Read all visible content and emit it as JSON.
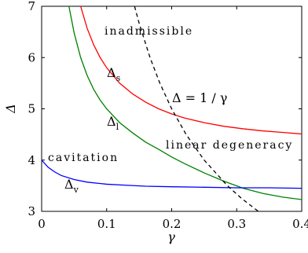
{
  "chart_data": {
    "type": "line",
    "xlabel": "γ",
    "ylabel": "Δ",
    "xlim": [
      0,
      0.4
    ],
    "ylim": [
      3,
      7
    ],
    "x_ticks": [
      "0",
      "0.1",
      "0.2",
      "0.3",
      "0.4"
    ],
    "y_ticks": [
      "3",
      "4",
      "5",
      "6",
      "7"
    ],
    "grid": false,
    "series": [
      {
        "name": "Δs",
        "color": "#ff0000",
        "style": "solid",
        "x": [
          0.06,
          0.07,
          0.08,
          0.09,
          0.1,
          0.12,
          0.14,
          0.16,
          0.18,
          0.2,
          0.22,
          0.25,
          0.28,
          0.31,
          0.34,
          0.37,
          0.4
        ],
        "y": [
          7.0,
          6.57,
          6.25,
          6.0,
          5.8,
          5.5,
          5.29,
          5.13,
          5.0,
          4.9,
          4.82,
          4.73,
          4.66,
          4.61,
          4.57,
          4.54,
          4.51
        ]
      },
      {
        "name": "Δl",
        "color": "#008000",
        "style": "solid",
        "x": [
          0.042,
          0.05,
          0.06,
          0.07,
          0.08,
          0.09,
          0.1,
          0.12,
          0.14,
          0.16,
          0.18,
          0.2,
          0.22,
          0.25,
          0.28,
          0.31,
          0.34,
          0.37,
          0.4
        ],
        "y": [
          7.0,
          6.48,
          6.0,
          5.65,
          5.38,
          5.17,
          5.0,
          4.73,
          4.53,
          4.35,
          4.21,
          4.06,
          3.93,
          3.75,
          3.59,
          3.45,
          3.35,
          3.28,
          3.23
        ]
      },
      {
        "name": "Δv",
        "color": "#0000ff",
        "style": "solid",
        "x": [
          0.0,
          0.01,
          0.02,
          0.03,
          0.05,
          0.07,
          0.1,
          0.13,
          0.16,
          0.2,
          0.25,
          0.3,
          0.35,
          0.4
        ],
        "y": [
          4.0,
          3.86,
          3.77,
          3.7,
          3.62,
          3.57,
          3.53,
          3.51,
          3.49,
          3.48,
          3.47,
          3.46,
          3.46,
          3.45
        ]
      },
      {
        "name": "Δ = 1/γ",
        "color": "#000000",
        "style": "dashed",
        "x": [
          0.1429,
          0.15,
          0.1667,
          0.1818,
          0.2,
          0.2222,
          0.25,
          0.2857,
          0.3077,
          0.3333
        ],
        "y": [
          7.0,
          6.667,
          6.0,
          5.5,
          5.0,
          4.5,
          4.0,
          3.5,
          3.25,
          3.0
        ]
      }
    ],
    "annotations": {
      "inadmissible": "inadmissible",
      "linear_degeneracy": "linear degeneracy",
      "cavitation": "cavitation",
      "delta_s_main": "Δ",
      "delta_s_sub": "s",
      "delta_l_main": "Δ",
      "delta_l_sub": "l",
      "delta_v_main": "Δ",
      "delta_v_sub": "v",
      "hyperbola": "Δ = 1 / γ"
    }
  }
}
